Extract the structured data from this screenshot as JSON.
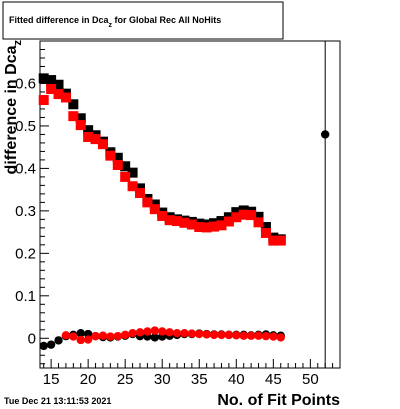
{
  "timestamp": "Tue Dec 21 13:11:53 2021",
  "chart_data": {
    "type": "scatter",
    "title_main": "Fitted difference in Dca",
    "title_sub": "z",
    "title_rest": "  for Global Rec All NoHits",
    "xlabel": "No. of Fit Points",
    "ylabel_main": "difference in Dca",
    "ylabel_sub": "z",
    "xlim": [
      13.5,
      54
    ],
    "ylim": [
      -0.07,
      0.7
    ],
    "xticks": [
      15,
      20,
      25,
      30,
      35,
      40,
      45,
      50
    ],
    "yticks": [
      0,
      0.1,
      0.2,
      0.3,
      0.4,
      0.5,
      0.6
    ],
    "ytick_labels": [
      "0",
      "0.1",
      "0.2",
      "0.3",
      "0.4",
      "0.5",
      "0.6"
    ],
    "grid": false,
    "series": [
      {
        "color": "#000000",
        "marker": "square",
        "points": [
          [
            14,
            0.612
          ],
          [
            15,
            0.608
          ],
          [
            16,
            0.597
          ],
          [
            17,
            0.576
          ],
          [
            18,
            0.551
          ],
          [
            19,
            0.518
          ],
          [
            20,
            0.49
          ],
          [
            21,
            0.478
          ],
          [
            22,
            0.463
          ],
          [
            23,
            0.438
          ],
          [
            24,
            0.425
          ],
          [
            25,
            0.405
          ],
          [
            26,
            0.39
          ],
          [
            27,
            0.353
          ],
          [
            28,
            0.328
          ],
          [
            29,
            0.315
          ],
          [
            30,
            0.296
          ],
          [
            31,
            0.285
          ],
          [
            32,
            0.28
          ],
          [
            33,
            0.277
          ],
          [
            34,
            0.274
          ],
          [
            35,
            0.27
          ],
          [
            36,
            0.268
          ],
          [
            37,
            0.271
          ],
          [
            38,
            0.276
          ],
          [
            39,
            0.285
          ],
          [
            40,
            0.297
          ],
          [
            41,
            0.301
          ],
          [
            42,
            0.298
          ],
          [
            43,
            0.286
          ],
          [
            44,
            0.262
          ],
          [
            45,
            0.237
          ],
          [
            46,
            0.233
          ]
        ]
      },
      {
        "color": "#ff0000",
        "marker": "square",
        "points": [
          [
            14,
            0.561
          ],
          [
            15,
            0.587
          ],
          [
            16,
            0.575
          ],
          [
            17,
            0.567
          ],
          [
            18,
            0.523
          ],
          [
            19,
            0.502
          ],
          [
            20,
            0.474
          ],
          [
            21,
            0.469
          ],
          [
            22,
            0.457
          ],
          [
            23,
            0.43
          ],
          [
            24,
            0.408
          ],
          [
            25,
            0.38
          ],
          [
            26,
            0.358
          ],
          [
            27,
            0.342
          ],
          [
            28,
            0.32
          ],
          [
            29,
            0.304
          ],
          [
            30,
            0.288
          ],
          [
            31,
            0.278
          ],
          [
            32,
            0.276
          ],
          [
            33,
            0.272
          ],
          [
            34,
            0.268
          ],
          [
            35,
            0.262
          ],
          [
            36,
            0.261
          ],
          [
            37,
            0.263
          ],
          [
            38,
            0.266
          ],
          [
            39,
            0.275
          ],
          [
            40,
            0.285
          ],
          [
            41,
            0.291
          ],
          [
            42,
            0.29
          ],
          [
            43,
            0.273
          ],
          [
            44,
            0.248
          ],
          [
            45,
            0.23
          ],
          [
            46,
            0.23
          ]
        ]
      },
      {
        "color": "#000000",
        "marker": "circle",
        "points": [
          [
            14,
            -0.018
          ],
          [
            15,
            -0.015
          ],
          [
            16,
            -0.005
          ],
          [
            17,
            0.005
          ],
          [
            18,
            0.008
          ],
          [
            19,
            0.012
          ],
          [
            20,
            0.01
          ],
          [
            21,
            0.005
          ],
          [
            22,
            0.003
          ],
          [
            23,
            0.002
          ],
          [
            24,
            0.004
          ],
          [
            25,
            0.006
          ],
          [
            26,
            0.01
          ],
          [
            27,
            0.005
          ],
          [
            28,
            0.004
          ],
          [
            29,
            0.002
          ],
          [
            30,
            0.004
          ],
          [
            31,
            0.006
          ],
          [
            32,
            0.008
          ],
          [
            33,
            0.01
          ],
          [
            34,
            0.01
          ],
          [
            35,
            0.011
          ],
          [
            36,
            0.01
          ],
          [
            37,
            0.009
          ],
          [
            38,
            0.009
          ],
          [
            39,
            0.008
          ],
          [
            40,
            0.008
          ],
          [
            41,
            0.008
          ],
          [
            42,
            0.007
          ],
          [
            43,
            0.008
          ],
          [
            44,
            0.009
          ],
          [
            45,
            0.007
          ],
          [
            46,
            0.006
          ],
          [
            52,
            0.48
          ]
        ]
      },
      {
        "color": "#ff0000",
        "marker": "circle",
        "points": [
          [
            17,
            0.007
          ],
          [
            18,
            0.004
          ],
          [
            19,
            -0.004
          ],
          [
            20,
            -0.003
          ],
          [
            21,
            0.005
          ],
          [
            22,
            0.006
          ],
          [
            23,
            0.004
          ],
          [
            24,
            0.005
          ],
          [
            25,
            0.008
          ],
          [
            26,
            0.012
          ],
          [
            27,
            0.014
          ],
          [
            28,
            0.016
          ],
          [
            29,
            0.018
          ],
          [
            30,
            0.016
          ],
          [
            31,
            0.014
          ],
          [
            32,
            0.012
          ],
          [
            33,
            0.012
          ],
          [
            34,
            0.011
          ],
          [
            35,
            0.01
          ],
          [
            36,
            0.009
          ],
          [
            37,
            0.008
          ],
          [
            38,
            0.008
          ],
          [
            39,
            0.008
          ],
          [
            40,
            0.007
          ],
          [
            41,
            0.006
          ],
          [
            42,
            0.006
          ],
          [
            43,
            0.006
          ],
          [
            44,
            0.005
          ],
          [
            45,
            0.004
          ],
          [
            46,
            0.002
          ]
        ]
      }
    ],
    "error_bars": [
      {
        "x": 52,
        "low": -0.07,
        "high": 0.7,
        "color": "#000000"
      }
    ]
  }
}
